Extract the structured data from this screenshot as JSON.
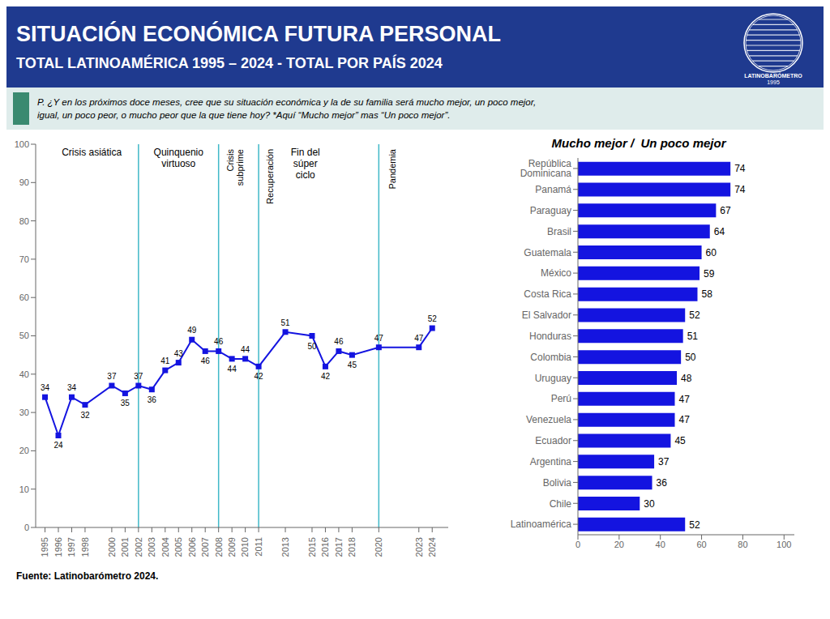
{
  "title": "SITUACIÓN ECONÓMICA FUTURA PERSONAL",
  "subtitle": "TOTAL LATINOAMÉRICA 1995 – 2024 - TOTAL POR PAÍS 2024",
  "annotations": [
    "P. ¿Y en los próximos doce meses, cree que su situación económica y la de su familia será mucho mejor, un poco mejor,\nigual, un poco peor, o mucho peor que la que tiene hoy? *Aquí “Mucho mejor” mas “Un poco mejor”.",
    "Fuente: Latinobarómetro 2024.",
    "LATINOBARÓMETRO",
    "1995"
  ],
  "chart_data": [
    {
      "type": "line",
      "x": [
        1995,
        1996,
        1997,
        1998,
        2000,
        2001,
        2002,
        2003,
        2004,
        2005,
        2006,
        2007,
        2008,
        2009,
        2010,
        2011,
        2013,
        2015,
        2016,
        2017,
        2018,
        2020,
        2023,
        2024
      ],
      "values": [
        34,
        24,
        34,
        32,
        37,
        35,
        37,
        36,
        41,
        43,
        49,
        46,
        46,
        44,
        44,
        42,
        51,
        50,
        42,
        46,
        45,
        47,
        47,
        52
      ],
      "color": "#1414e0",
      "marker": "square",
      "data_labels": true,
      "grid": false,
      "xlim": [
        1994.3,
        2025.2
      ],
      "xticks": [
        1995,
        1996,
        1997,
        1998,
        2000,
        2001,
        2002,
        2003,
        2004,
        2005,
        2006,
        2007,
        2008,
        2009,
        2010,
        2011,
        2013,
        2015,
        2016,
        2017,
        2018,
        2020,
        2023,
        2024
      ],
      "ylim": [
        0,
        100
      ],
      "yticks": [
        0,
        10,
        20,
        30,
        40,
        50,
        60,
        70,
        80,
        90,
        100
      ],
      "vlines": [
        {
          "x": 2002,
          "color": "#40b8c8"
        },
        {
          "x": 2008,
          "color": "#40b8c8"
        },
        {
          "x": 2011,
          "color": "#40b8c8"
        },
        {
          "x": 2020,
          "color": "#40b8c8"
        }
      ],
      "annotations": [
        {
          "text": "Crisis asiática",
          "x": 1998.5
        },
        {
          "text": "Quinquenio\nvirtuoso",
          "x": 2005.0
        },
        {
          "text": "Crisis\nsubprime",
          "x": 2008.3
        },
        {
          "text": "Recuperación",
          "x": 2011.3
        },
        {
          "text": "Fin del\nsúper\nciclo",
          "x": 2014.5
        },
        {
          "text": "Pandemia",
          "x": 2020.5
        }
      ]
    },
    {
      "type": "bar",
      "orientation": "horizontal",
      "title": "Mucho mejor /  Un poco mejor",
      "categories": [
        "República Dominicana",
        "Panamá",
        "Paraguay",
        "Brasil",
        "Guatemala",
        "México",
        "Costa Rica",
        "El Salvador",
        "Honduras",
        "Colombia",
        "Uruguay",
        "Perú",
        "Venezuela",
        "Ecuador",
        "Argentina",
        "Bolivia",
        "Chile",
        "Latinoamérica"
      ],
      "values": [
        74,
        74,
        67,
        64,
        60,
        59,
        58,
        52,
        51,
        50,
        48,
        47,
        47,
        45,
        37,
        36,
        30,
        52
      ],
      "color": "#1414e0",
      "data_labels": true,
      "grid": false,
      "xlim": [
        0,
        105
      ],
      "xticks": [
        0,
        20,
        40,
        60,
        80,
        100
      ]
    }
  ]
}
